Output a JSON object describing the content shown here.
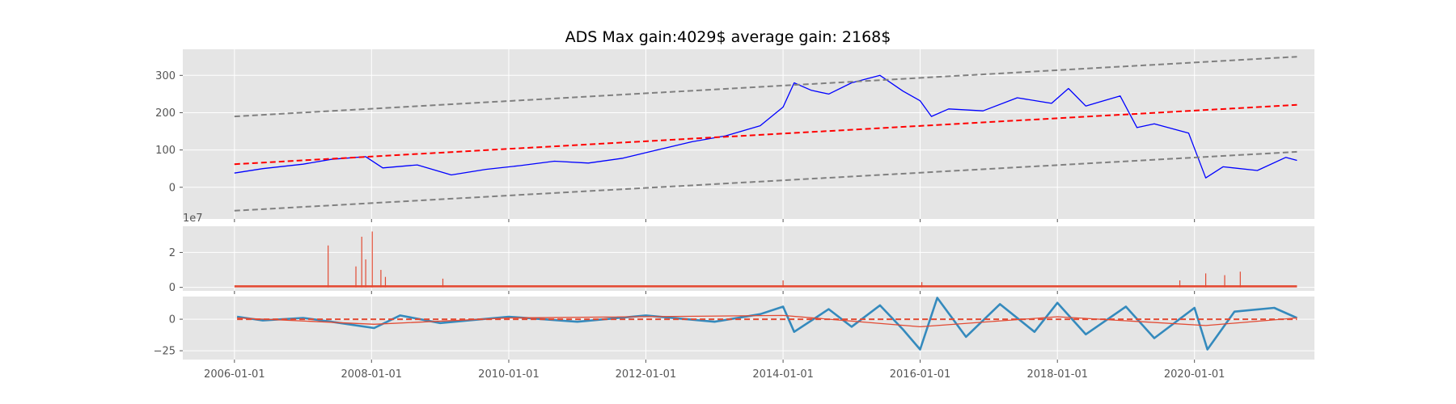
{
  "chart_data": {
    "title": "ADS Max gain:4029$  average gain: 2168$",
    "style": "ggplot",
    "grid": true,
    "x_axis": {
      "type": "date",
      "ticks": [
        "2006-01-01",
        "2008-01-01",
        "2010-01-01",
        "2012-01-01",
        "2014-01-01",
        "2016-01-01",
        "2018-01-01",
        "2020-01-01"
      ],
      "range": [
        "2005-04-01",
        "2021-10-01"
      ]
    },
    "panels": [
      {
        "type": "line",
        "ylim": [
          -85,
          370
        ],
        "yticks": [
          "0",
          "100",
          "200",
          "300"
        ],
        "series": [
          {
            "role": "price",
            "color": "#0000ff",
            "style": "solid",
            "points": [
              [
                "2006-01-01",
                38
              ],
              [
                "2006-06-01",
                50
              ],
              [
                "2007-01-01",
                62
              ],
              [
                "2007-06-01",
                75
              ],
              [
                "2007-12-01",
                82
              ],
              [
                "2008-03-01",
                52
              ],
              [
                "2008-09-01",
                60
              ],
              [
                "2009-03-01",
                33
              ],
              [
                "2009-09-01",
                48
              ],
              [
                "2010-03-01",
                58
              ],
              [
                "2010-09-01",
                70
              ],
              [
                "2011-03-01",
                65
              ],
              [
                "2011-09-01",
                78
              ],
              [
                "2012-03-01",
                100
              ],
              [
                "2012-09-01",
                122
              ],
              [
                "2013-03-01",
                138
              ],
              [
                "2013-09-01",
                165
              ],
              [
                "2014-01-01",
                215
              ],
              [
                "2014-03-01",
                280
              ],
              [
                "2014-06-01",
                260
              ],
              [
                "2014-09-01",
                250
              ],
              [
                "2015-01-01",
                280
              ],
              [
                "2015-06-01",
                300
              ],
              [
                "2015-10-01",
                258
              ],
              [
                "2016-01-01",
                232
              ],
              [
                "2016-03-01",
                190
              ],
              [
                "2016-06-01",
                210
              ],
              [
                "2016-12-01",
                205
              ],
              [
                "2017-06-01",
                240
              ],
              [
                "2017-12-01",
                225
              ],
              [
                "2018-03-01",
                265
              ],
              [
                "2018-06-01",
                218
              ],
              [
                "2018-12-01",
                245
              ],
              [
                "2019-03-01",
                160
              ],
              [
                "2019-06-01",
                170
              ],
              [
                "2019-12-01",
                145
              ],
              [
                "2020-03-01",
                25
              ],
              [
                "2020-06-01",
                55
              ],
              [
                "2020-12-01",
                45
              ],
              [
                "2021-05-01",
                80
              ],
              [
                "2021-06-30",
                72
              ]
            ]
          },
          {
            "role": "trend",
            "color": "#ff0000",
            "style": "dashed",
            "points": [
              [
                "2006-01-01",
                62
              ],
              [
                "2021-06-30",
                221
              ]
            ]
          },
          {
            "role": "upper band",
            "color": "#808080",
            "style": "dashed",
            "points": [
              [
                "2006-01-01",
                190
              ],
              [
                "2021-06-30",
                350
              ]
            ]
          },
          {
            "role": "lower band",
            "color": "#808080",
            "style": "dashed",
            "points": [
              [
                "2006-01-01",
                -63
              ],
              [
                "2021-06-30",
                95
              ]
            ]
          }
        ]
      },
      {
        "type": "bar",
        "ylim": [
          -0.2,
          3.5
        ],
        "yticks": [
          "0",
          "2"
        ],
        "offset_label": "1e7",
        "color": "#e24a33",
        "baseline": 0.12,
        "spikes": [
          [
            "2007-05-15",
            2.4
          ],
          [
            "2007-10-10",
            1.2
          ],
          [
            "2007-11-10",
            2.9
          ],
          [
            "2007-12-01",
            1.6
          ],
          [
            "2008-01-05",
            3.2
          ],
          [
            "2008-02-20",
            1.0
          ],
          [
            "2008-03-15",
            0.6
          ],
          [
            "2009-01-15",
            0.5
          ],
          [
            "2014-01-01",
            0.4
          ],
          [
            "2016-01-10",
            0.3
          ],
          [
            "2019-10-15",
            0.4
          ],
          [
            "2020-03-01",
            0.8
          ],
          [
            "2020-06-10",
            0.7
          ],
          [
            "2020-09-01",
            0.9
          ]
        ]
      },
      {
        "type": "line",
        "ylim": [
          -32,
          18
        ],
        "yticks": [
          "0",
          "−25"
        ],
        "series": [
          {
            "role": "oscillator",
            "color": "#348abd",
            "style": "solid",
            "width": 2.6,
            "points": [
              [
                "2006-01-15",
                2
              ],
              [
                "2006-06-01",
                -1
              ],
              [
                "2007-01-01",
                1
              ],
              [
                "2007-06-01",
                -2
              ],
              [
                "2008-01-15",
                -7
              ],
              [
                "2008-06-01",
                3
              ],
              [
                "2009-01-01",
                -3
              ],
              [
                "2010-01-01",
                2
              ],
              [
                "2011-01-01",
                -2
              ],
              [
                "2012-01-01",
                3
              ],
              [
                "2013-01-01",
                -2
              ],
              [
                "2013-09-01",
                4
              ],
              [
                "2014-01-01",
                10
              ],
              [
                "2014-03-01",
                -10
              ],
              [
                "2014-09-01",
                8
              ],
              [
                "2015-01-01",
                -6
              ],
              [
                "2015-06-01",
                11
              ],
              [
                "2015-10-01",
                -8
              ],
              [
                "2016-01-01",
                -24
              ],
              [
                "2016-04-01",
                17
              ],
              [
                "2016-09-01",
                -14
              ],
              [
                "2017-03-01",
                12
              ],
              [
                "2017-09-01",
                -10
              ],
              [
                "2018-01-01",
                13
              ],
              [
                "2018-06-01",
                -12
              ],
              [
                "2019-01-01",
                10
              ],
              [
                "2019-06-01",
                -15
              ],
              [
                "2020-01-01",
                9
              ],
              [
                "2020-03-10",
                -24
              ],
              [
                "2020-08-01",
                6
              ],
              [
                "2021-03-01",
                9
              ],
              [
                "2021-06-30",
                1
              ]
            ]
          },
          {
            "role": "signal",
            "color": "#e24a33",
            "style": "solid",
            "width": 1.3,
            "points": [
              [
                "2006-01-15",
                1
              ],
              [
                "2008-01-15",
                -4
              ],
              [
                "2010-01-01",
                1
              ],
              [
                "2014-01-01",
                3
              ],
              [
                "2016-01-01",
                -6
              ],
              [
                "2018-01-01",
                2
              ],
              [
                "2020-03-01",
                -5
              ],
              [
                "2021-06-30",
                1
              ]
            ]
          },
          {
            "role": "zero",
            "color": "#e24a33",
            "style": "dashed",
            "points": [
              [
                "2006-01-15",
                0
              ],
              [
                "2021-06-30",
                0
              ]
            ]
          }
        ]
      }
    ]
  }
}
